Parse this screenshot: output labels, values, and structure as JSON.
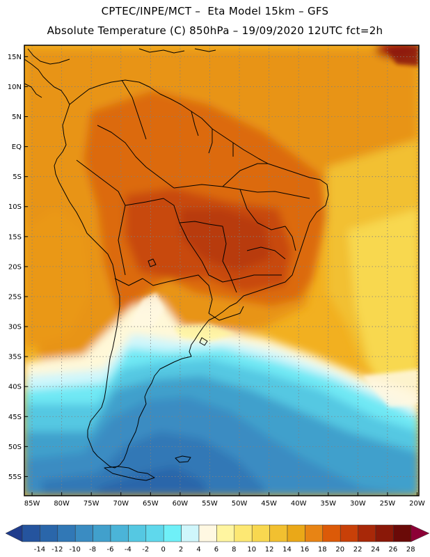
{
  "title_line1": "CPTEC/INPE/MCT –  Eta Model 15km – GFS",
  "title_line2": "Absolute Temperature (C) 850hPa – 19/09/2020 12UTC fct=2h",
  "lat_labels": [
    "15N",
    "10N",
    "5N",
    "EQ",
    "5S",
    "10S",
    "15S",
    "20S",
    "25S",
    "30S",
    "35S",
    "40S",
    "45S",
    "50S",
    "55S"
  ],
  "lat_values": [
    15,
    10,
    5,
    0,
    -5,
    -10,
    -15,
    -20,
    -25,
    -30,
    -35,
    -40,
    -45,
    -50,
    -55
  ],
  "lon_labels": [
    "85W",
    "80W",
    "75W",
    "70W",
    "65W",
    "60W",
    "55W",
    "50W",
    "45W",
    "40W",
    "35W",
    "30W",
    "25W",
    "20W"
  ],
  "lon_values": [
    -85,
    -80,
    -75,
    -70,
    -65,
    -60,
    -55,
    -50,
    -45,
    -40,
    -35,
    -30,
    -25,
    -20
  ],
  "colorbar": {
    "labels": [
      "-14",
      "-12",
      "-10",
      "-8",
      "-6",
      "-4",
      "-2",
      "0",
      "2",
      "4",
      "6",
      "8",
      "10",
      "12",
      "14",
      "16",
      "18",
      "20",
      "22",
      "24",
      "26",
      "28"
    ],
    "colors": [
      "#1f3c8c",
      "#25549e",
      "#2a66aa",
      "#3178b6",
      "#3a8cc2",
      "#41a0cc",
      "#4bb4d8",
      "#55c8e2",
      "#5fd8ec",
      "#6ff0f8",
      "#cff6fb",
      "#fff8e2",
      "#fff5a0",
      "#fde873",
      "#f8d850",
      "#f2c030",
      "#eaa818",
      "#e88414",
      "#dc5a08",
      "#c84008",
      "#a82808",
      "#8a1808",
      "#6a0a08",
      "#8c0036"
    ]
  },
  "colors": {
    "frame": "#000000",
    "grid": "#808080",
    "coast": "#000000"
  }
}
